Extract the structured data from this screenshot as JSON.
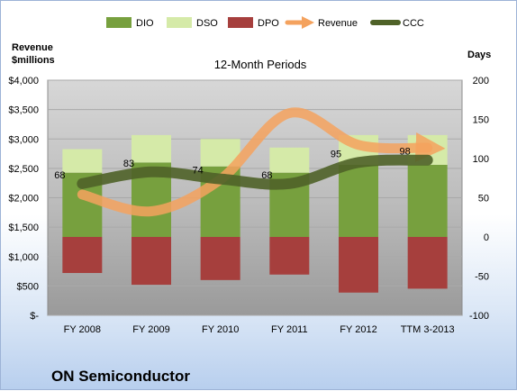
{
  "chart_data": {
    "type": "bar",
    "title": "12-Month Periods",
    "company": "ON Semiconductor",
    "y_left_label_line1": "Revenue",
    "y_left_label_line2": "$millions",
    "y_right_label": "Days",
    "categories": [
      "FY 2008",
      "FY 2009",
      "FY 2010",
      "FY 2011",
      "FY 2012",
      "TTM 3-2013"
    ],
    "y_left_ticks": [
      "$4,000",
      "$3,500",
      "$3,000",
      "$2,500",
      "$2,000",
      "$1,500",
      "$1,000",
      "$500",
      "$-"
    ],
    "y_left_range": [
      0,
      4000
    ],
    "y_right_ticks": [
      "200",
      "150",
      "100",
      "50",
      "0",
      "-50",
      "-100"
    ],
    "y_right_range": [
      -100,
      200
    ],
    "series": [
      {
        "name": "DIO",
        "type": "stacked-bar",
        "axis": "right",
        "color": "#77a03e",
        "values": [
          82,
          95,
          90,
          82,
          92,
          92
        ]
      },
      {
        "name": "DSO",
        "type": "stacked-bar",
        "axis": "right",
        "color": "#d5eaa8",
        "values": [
          30,
          35,
          35,
          32,
          38,
          38
        ]
      },
      {
        "name": "DPO",
        "type": "stacked-bar",
        "axis": "right",
        "color": "#a63f3d",
        "values": [
          -46,
          -61,
          -55,
          -48,
          -71,
          -66
        ]
      },
      {
        "name": "Revenue",
        "type": "line",
        "axis": "left",
        "color": "#f4a25e",
        "values": [
          2055,
          1770,
          2310,
          3440,
          2900,
          2850
        ]
      },
      {
        "name": "CCC",
        "type": "line",
        "axis": "right",
        "color": "#4f6228",
        "values": [
          68,
          83,
          74,
          68,
          95,
          98
        ]
      }
    ],
    "ccc_labels": [
      "68",
      "83",
      "74",
      "68",
      "95",
      "98"
    ],
    "legend": [
      "DIO",
      "DSO",
      "DPO",
      "Revenue",
      "CCC"
    ],
    "legend_position": "top"
  }
}
